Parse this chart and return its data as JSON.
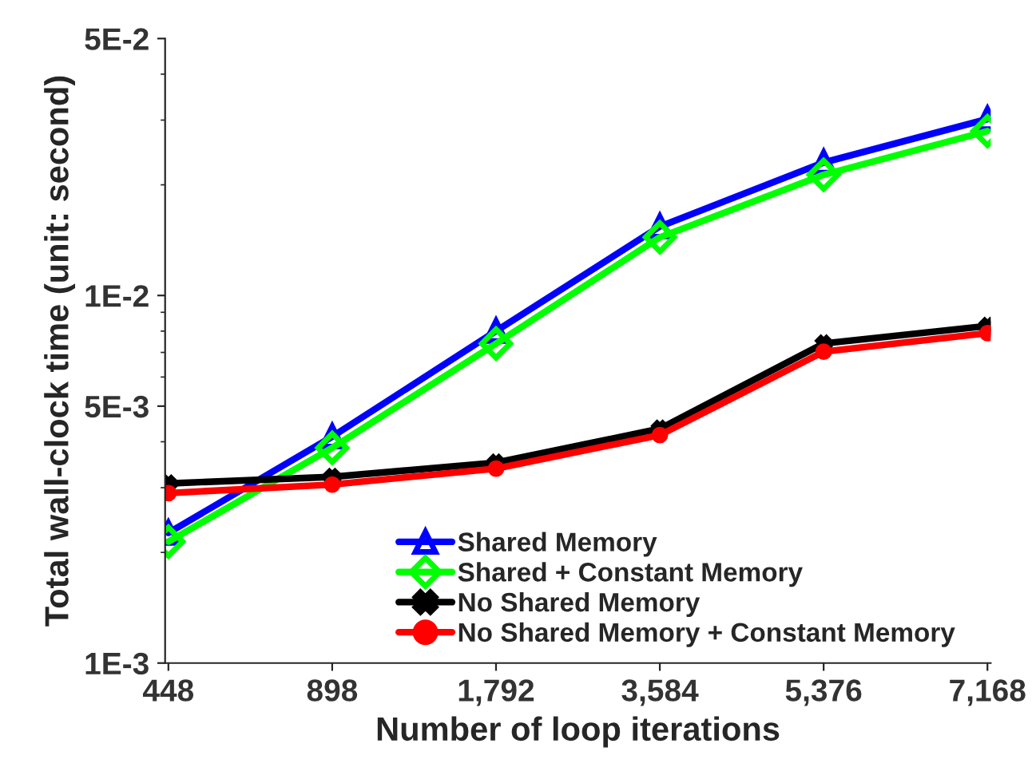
{
  "chart_data": {
    "type": "line",
    "xlabel": "Number of loop iterations",
    "ylabel": "Total wall-clock time (unit: second)",
    "categories": [
      "448",
      "898",
      "1,792",
      "3,584",
      "5,376",
      "7,168"
    ],
    "series": [
      {
        "name": "Shared Memory",
        "color": "#0000ff",
        "marker": "triangle",
        "values": [
          0.00226,
          0.00413,
          0.008,
          0.0154,
          0.023,
          0.0302
        ]
      },
      {
        "name": "Shared + Constant Memory",
        "color": "#00ff00",
        "marker": "diamond",
        "values": [
          0.00214,
          0.00385,
          0.0074,
          0.0144,
          0.0213,
          0.028
        ]
      },
      {
        "name": "No Shared Memory",
        "color": "#000000",
        "marker": "cross",
        "values": [
          0.00308,
          0.00321,
          0.00351,
          0.00434,
          0.0074,
          0.00826
        ]
      },
      {
        "name": "No Shared Memory + Constant Memory",
        "color": "#ff0000",
        "marker": "circle",
        "values": [
          0.0029,
          0.00306,
          0.00338,
          0.00417,
          0.00703,
          0.0079
        ]
      }
    ],
    "log": "y",
    "ylim": [
      0.001,
      0.05
    ],
    "yticks": [
      {
        "value": 0.001,
        "label": "1E-3"
      },
      {
        "value": 0.005,
        "label": "5E-3"
      },
      {
        "value": 0.01,
        "label": "1E-2"
      },
      {
        "value": 0.05,
        "label": "5E-2"
      }
    ],
    "grid": false,
    "legend": "bottom",
    "line_style": "solid"
  }
}
